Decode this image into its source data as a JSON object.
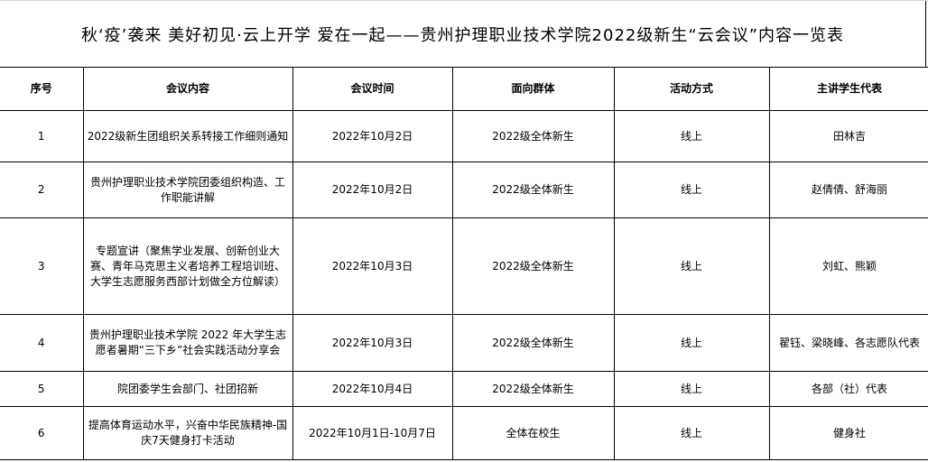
{
  "title": "秋‘疫’袭来 美好初见·云上开学 爱在一起——贵州护理职业技术学院2022级新生“云会议”内容一览表",
  "columns": [
    "序号",
    "会议内容",
    "会议时间",
    "面向群体",
    "活动方式",
    "主讲学生代表"
  ],
  "rows": [
    [
      "1",
      "2022级新生团组织关系转接工作细则通知",
      "2022年10月2日",
      "2022级全体新生",
      "线上",
      "田林吉"
    ],
    [
      "2",
      "贵州护理职业技术学院团委组织构造、工作职能讲解",
      "2022年10月2日",
      "2022级全体新生",
      "线上",
      "赵倩倩、舒海丽"
    ],
    [
      "3",
      "专题宣讲（聚焦学业发展、创新创业大赛、青年马克思主义者培养工程培训班、大学生志愿服务西部计划做全方位解读）",
      "2022年10月3日",
      "2022级全体新生",
      "线上",
      "刘虹、熊颖"
    ],
    [
      "4",
      "贵州护理职业技术学院 2022 年大学生志愿者暑期“三下乡”社会实践活动分享会",
      "2022年10月3日",
      "2022级全体新生",
      "线上",
      "翟钰、梁晓峰、各志愿队代表"
    ],
    [
      "5",
      "院团委学生会部门、社团招新",
      "2022年10月4日",
      "2022级全体新生",
      "线上",
      "各部（社）代表"
    ],
    [
      "6",
      "提高体育运动水平，兴奋中华民族精神-国庆7天健身打卡活动",
      "2022年10月1日-10月7日",
      "全体在校生",
      "线上",
      "健身社"
    ]
  ]
}
